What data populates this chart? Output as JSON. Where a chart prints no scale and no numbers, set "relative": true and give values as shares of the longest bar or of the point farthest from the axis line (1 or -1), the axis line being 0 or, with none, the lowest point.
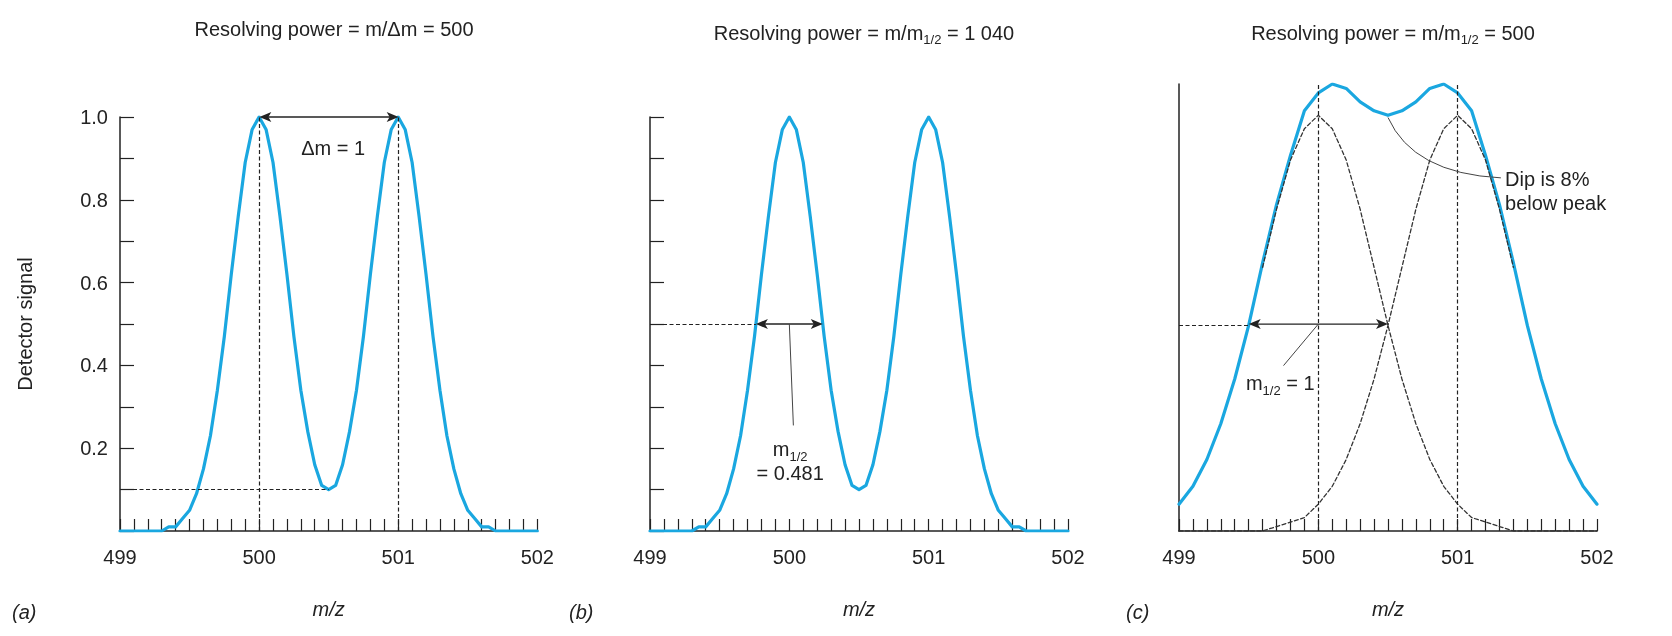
{
  "chart_data": [
    {
      "type": "line",
      "title": "Resolving power = m/Δm = 500",
      "xlabel": "m/z",
      "ylabel": "Detector signal",
      "marker": "none",
      "x": [
        499,
        499.05,
        499.1,
        499.15,
        499.2,
        499.25,
        499.3,
        499.35,
        499.4,
        499.45,
        499.5,
        499.55,
        499.6,
        499.65,
        499.7,
        499.75,
        499.8,
        499.85,
        499.9,
        499.95,
        500,
        500.05,
        500.1,
        500.15,
        500.2,
        500.25,
        500.3,
        500.35,
        500.4,
        500.45,
        500.5,
        500.55,
        500.6,
        500.65,
        500.7,
        500.75,
        500.8,
        500.85,
        500.9,
        500.95,
        501,
        501.05,
        501.1,
        501.15,
        501.2,
        501.25,
        501.3,
        501.35,
        501.4,
        501.45,
        501.5,
        501.55,
        501.6,
        501.65,
        501.7,
        501.75,
        501.8,
        501.85,
        501.9,
        501.95,
        502
      ],
      "series": [
        {
          "color": "#1aa7e0",
          "values": [
            0,
            0,
            0,
            0,
            0,
            0,
            0,
            0.01,
            0.01,
            0.03,
            0.05,
            0.09,
            0.15,
            0.23,
            0.34,
            0.47,
            0.62,
            0.76,
            0.89,
            0.97,
            1,
            0.97,
            0.89,
            0.76,
            0.62,
            0.47,
            0.34,
            0.24,
            0.16,
            0.11,
            0.1,
            0.11,
            0.16,
            0.24,
            0.34,
            0.47,
            0.62,
            0.76,
            0.89,
            0.97,
            1,
            0.97,
            0.89,
            0.76,
            0.62,
            0.47,
            0.34,
            0.23,
            0.15,
            0.09,
            0.05,
            0.03,
            0.01,
            0.01,
            0,
            0,
            0,
            0,
            0,
            0,
            0
          ]
        }
      ],
      "xlim": [
        499,
        502
      ],
      "xticks": [
        499,
        {
          "value": 499.1,
          "label": null
        },
        {
          "value": 499.2,
          "label": null
        },
        {
          "value": 499.3,
          "label": null
        },
        {
          "value": 499.4,
          "label": null
        },
        {
          "value": 499.5,
          "label": null
        },
        {
          "value": 499.6,
          "label": null
        },
        {
          "value": 499.7,
          "label": null
        },
        {
          "value": 499.8,
          "label": null
        },
        {
          "value": 499.9,
          "label": null
        },
        500,
        {
          "value": 500.1,
          "label": null
        },
        {
          "value": 500.2,
          "label": null
        },
        {
          "value": 500.3,
          "label": null
        },
        {
          "value": 500.4,
          "label": null
        },
        {
          "value": 500.5,
          "label": null
        },
        {
          "value": 500.6,
          "label": null
        },
        {
          "value": 500.7,
          "label": null
        },
        {
          "value": 500.8,
          "label": null
        },
        {
          "value": 500.9,
          "label": null
        },
        501,
        {
          "value": 501.1,
          "label": null
        },
        {
          "value": 501.2,
          "label": null
        },
        {
          "value": 501.3,
          "label": null
        },
        {
          "value": 501.4,
          "label": null
        },
        {
          "value": 501.5,
          "label": null
        },
        {
          "value": 501.6,
          "label": null
        },
        {
          "value": 501.7,
          "label": null
        },
        {
          "value": 501.8,
          "label": null
        },
        {
          "value": 501.9,
          "label": null
        },
        502
      ],
      "ylim": [
        0,
        1
      ],
      "yticks": [
        {
          "value": 0.1,
          "label": null
        },
        0.2,
        {
          "value": 0.3,
          "label": null
        },
        0.4,
        {
          "value": 0.5,
          "label": null
        },
        0.6,
        {
          "value": 0.7,
          "label": null
        },
        0.8,
        {
          "value": 0.9,
          "label": null
        },
        {
          "value": 1,
          "label": "1.0"
        }
      ],
      "ref_lines": [
        {
          "axis": "x",
          "value": 500,
          "line_style": "dashed"
        },
        {
          "axis": "x",
          "value": 501,
          "line_style": "dashed"
        },
        {
          "axis": "y",
          "value": 0.1,
          "line_style": "dashed"
        }
      ],
      "annotations": [
        "Δm = 1",
        "(a)"
      ]
    },
    {
      "type": "line",
      "title": "Resolving power = m/m$_{1/2}$ = 1 040",
      "xlabel": "m/z",
      "marker": "none",
      "tick_labels": "x",
      "x": [
        499,
        499.05,
        499.1,
        499.15,
        499.2,
        499.25,
        499.3,
        499.35,
        499.4,
        499.45,
        499.5,
        499.55,
        499.6,
        499.65,
        499.7,
        499.75,
        499.8,
        499.85,
        499.9,
        499.95,
        500,
        500.05,
        500.1,
        500.15,
        500.2,
        500.25,
        500.3,
        500.35,
        500.4,
        500.45,
        500.5,
        500.55,
        500.6,
        500.65,
        500.7,
        500.75,
        500.8,
        500.85,
        500.9,
        500.95,
        501,
        501.05,
        501.1,
        501.15,
        501.2,
        501.25,
        501.3,
        501.35,
        501.4,
        501.45,
        501.5,
        501.55,
        501.6,
        501.65,
        501.7,
        501.75,
        501.8,
        501.85,
        501.9,
        501.95,
        502
      ],
      "series": [
        {
          "color": "#1aa7e0",
          "values": [
            0,
            0,
            0,
            0,
            0,
            0,
            0,
            0.01,
            0.01,
            0.03,
            0.05,
            0.09,
            0.15,
            0.23,
            0.34,
            0.47,
            0.62,
            0.76,
            0.89,
            0.97,
            1,
            0.97,
            0.89,
            0.76,
            0.62,
            0.47,
            0.34,
            0.24,
            0.16,
            0.11,
            0.1,
            0.11,
            0.16,
            0.24,
            0.34,
            0.47,
            0.62,
            0.76,
            0.89,
            0.97,
            1,
            0.97,
            0.89,
            0.76,
            0.62,
            0.47,
            0.34,
            0.23,
            0.15,
            0.09,
            0.05,
            0.03,
            0.01,
            0.01,
            0,
            0,
            0,
            0,
            0,
            0,
            0
          ]
        }
      ],
      "xlim": [
        499,
        502
      ],
      "xticks": [
        499,
        {
          "value": 499.1,
          "label": null
        },
        {
          "value": 499.2,
          "label": null
        },
        {
          "value": 499.3,
          "label": null
        },
        {
          "value": 499.4,
          "label": null
        },
        {
          "value": 499.5,
          "label": null
        },
        {
          "value": 499.6,
          "label": null
        },
        {
          "value": 499.7,
          "label": null
        },
        {
          "value": 499.8,
          "label": null
        },
        {
          "value": 499.9,
          "label": null
        },
        500,
        {
          "value": 500.1,
          "label": null
        },
        {
          "value": 500.2,
          "label": null
        },
        {
          "value": 500.3,
          "label": null
        },
        {
          "value": 500.4,
          "label": null
        },
        {
          "value": 500.5,
          "label": null
        },
        {
          "value": 500.6,
          "label": null
        },
        {
          "value": 500.7,
          "label": null
        },
        {
          "value": 500.8,
          "label": null
        },
        {
          "value": 500.9,
          "label": null
        },
        501,
        {
          "value": 501.1,
          "label": null
        },
        {
          "value": 501.2,
          "label": null
        },
        {
          "value": 501.3,
          "label": null
        },
        {
          "value": 501.4,
          "label": null
        },
        {
          "value": 501.5,
          "label": null
        },
        {
          "value": 501.6,
          "label": null
        },
        {
          "value": 501.7,
          "label": null
        },
        {
          "value": 501.8,
          "label": null
        },
        {
          "value": 501.9,
          "label": null
        },
        502
      ],
      "ylim": [
        0,
        1
      ],
      "yticks": [
        {
          "value": 0.1,
          "label": null
        },
        {
          "value": 0.2,
          "label": null
        },
        {
          "value": 0.3,
          "label": null
        },
        {
          "value": 0.4,
          "label": null
        },
        {
          "value": 0.5,
          "label": null
        },
        {
          "value": 0.6,
          "label": null
        },
        {
          "value": 0.7,
          "label": null
        },
        {
          "value": 0.8,
          "label": null
        },
        {
          "value": 0.9,
          "label": null
        },
        {
          "value": 1,
          "label": null
        }
      ],
      "ref_lines": [
        {
          "axis": "y",
          "value": 0.5,
          "line_style": "dashed"
        }
      ],
      "annotations": [
        "m$_{1/2}$\n= 0.481",
        "(b)"
      ]
    },
    {
      "type": "line",
      "title": "Resolving power = m/m$_{1/2}$ = 500",
      "xlabel": "m/z",
      "marker": "none",
      "tick_labels": "x",
      "relative": true,
      "x": [
        499,
        499.1,
        499.2,
        499.3,
        499.4,
        499.5,
        499.6,
        499.7,
        499.8,
        499.9,
        500,
        500.1,
        500.2,
        500.3,
        500.4,
        500.5,
        500.6,
        500.7,
        500.8,
        500.9,
        501,
        501.1,
        501.2,
        501.3,
        501.4,
        501.5,
        501.6,
        501.7,
        501.8,
        501.9,
        502
      ],
      "series": [
        {
          "color": "#1aa7e0",
          "values": [
            0.06,
            0.1,
            0.16,
            0.24,
            0.34,
            0.46,
            0.6,
            0.73,
            0.84,
            0.94,
            0.98,
            1,
            0.99,
            0.96,
            0.94,
            0.93,
            0.94,
            0.96,
            0.99,
            1,
            0.98,
            0.94,
            0.84,
            0.73,
            0.6,
            0.46,
            0.34,
            0.24,
            0.16,
            0.1,
            0.06
          ]
        },
        {
          "color": "#333333",
          "line_style": "dashed",
          "values": [
            null,
            null,
            null,
            null,
            null,
            null,
            0.59,
            0.72,
            0.83,
            0.9,
            0.93,
            0.9,
            0.83,
            0.72,
            0.59,
            0.46,
            0.34,
            0.24,
            0.16,
            0.1,
            0.06,
            0.03,
            0.02,
            0.01,
            0,
            0,
            0,
            0,
            0,
            0,
            0
          ]
        },
        {
          "color": "#333333",
          "line_style": "dashed",
          "values": [
            0,
            0,
            0,
            0,
            0,
            0,
            0,
            0.01,
            0.02,
            0.03,
            0.06,
            0.1,
            0.16,
            0.24,
            0.34,
            0.46,
            0.59,
            0.72,
            0.83,
            0.9,
            0.93,
            0.9,
            0.83,
            0.72,
            0.59,
            null,
            null,
            null,
            null,
            null,
            null
          ]
        }
      ],
      "xlim": [
        499,
        502
      ],
      "xticks": [
        499,
        {
          "value": 499.1,
          "label": null
        },
        {
          "value": 499.2,
          "label": null
        },
        {
          "value": 499.3,
          "label": null
        },
        {
          "value": 499.4,
          "label": null
        },
        {
          "value": 499.5,
          "label": null
        },
        {
          "value": 499.6,
          "label": null
        },
        {
          "value": 499.7,
          "label": null
        },
        {
          "value": 499.8,
          "label": null
        },
        {
          "value": 499.9,
          "label": null
        },
        500,
        {
          "value": 500.1,
          "label": null
        },
        {
          "value": 500.2,
          "label": null
        },
        {
          "value": 500.3,
          "label": null
        },
        {
          "value": 500.4,
          "label": null
        },
        {
          "value": 500.5,
          "label": null
        },
        {
          "value": 500.6,
          "label": null
        },
        {
          "value": 500.7,
          "label": null
        },
        {
          "value": 500.8,
          "label": null
        },
        {
          "value": 500.9,
          "label": null
        },
        501,
        {
          "value": 501.1,
          "label": null
        },
        {
          "value": 501.2,
          "label": null
        },
        {
          "value": 501.3,
          "label": null
        },
        {
          "value": 501.4,
          "label": null
        },
        {
          "value": 501.5,
          "label": null
        },
        {
          "value": 501.6,
          "label": null
        },
        {
          "value": 501.7,
          "label": null
        },
        {
          "value": 501.8,
          "label": null
        },
        {
          "value": 501.9,
          "label": null
        },
        502
      ],
      "ref_lines": [
        {
          "axis": "x",
          "value": 500,
          "line_style": "dashed"
        },
        {
          "axis": "x",
          "value": 501,
          "line_style": "dashed"
        },
        {
          "axis": "y",
          "value": 0.46,
          "line_style": "dashed"
        }
      ],
      "annotations": [
        "m$_{1/2}$ = 1",
        "Dip is 8% below peak",
        "(c)"
      ]
    }
  ]
}
